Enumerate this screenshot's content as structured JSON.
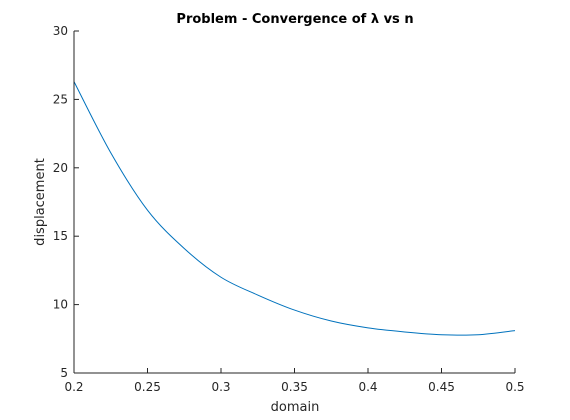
{
  "chart_data": {
    "type": "line",
    "title": "Problem - Convergence of λ vs n",
    "xlabel": "domain",
    "ylabel": "displacement",
    "xlim": [
      0.2,
      0.5
    ],
    "ylim": [
      5,
      30
    ],
    "xticks": [
      0.2,
      0.25,
      0.3,
      0.35,
      0.4,
      0.45,
      0.5
    ],
    "xtick_labels": [
      "0.2",
      "0.25",
      "0.3",
      "0.35",
      "0.4",
      "0.45",
      "0.5"
    ],
    "yticks": [
      5,
      10,
      15,
      20,
      25,
      30
    ],
    "ytick_labels": [
      "5",
      "10",
      "15",
      "20",
      "25",
      "30"
    ],
    "grid": false,
    "legend": "none",
    "series": [
      {
        "color": "#0072bd",
        "x": [
          0.2,
          0.225,
          0.25,
          0.275,
          0.3,
          0.325,
          0.35,
          0.375,
          0.4,
          0.425,
          0.45,
          0.475,
          0.5
        ],
        "y": [
          26.3,
          21.1,
          16.9,
          14.1,
          12.0,
          10.7,
          9.6,
          8.8,
          8.3,
          8.0,
          7.8,
          7.8,
          8.1
        ]
      }
    ]
  }
}
